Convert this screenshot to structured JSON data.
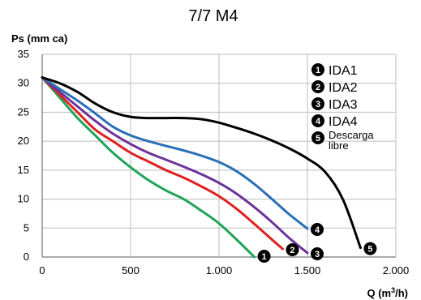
{
  "chart_data": {
    "type": "line",
    "title": "7/7 M4",
    "ylabel": "Ps (mm ca)",
    "xlabel_main": "Q (m",
    "xlabel_sup": "3",
    "xlabel_end": "/h)",
    "xlim": [
      0,
      2000
    ],
    "ylim": [
      0,
      35
    ],
    "xticks": [
      {
        "value": 0,
        "label": "0"
      },
      {
        "value": 500,
        "label": "500"
      },
      {
        "value": 1000,
        "label": "1.000"
      },
      {
        "value": 1500,
        "label": "1.500"
      },
      {
        "value": 2000,
        "label": "2.000"
      }
    ],
    "yticks": [
      {
        "value": 0,
        "label": "0"
      },
      {
        "value": 5,
        "label": "5"
      },
      {
        "value": 10,
        "label": "10"
      },
      {
        "value": 15,
        "label": "15"
      },
      {
        "value": 20,
        "label": "20"
      },
      {
        "value": 25,
        "label": "25"
      },
      {
        "value": 30,
        "label": "30"
      },
      {
        "value": 35,
        "label": "35"
      }
    ],
    "grid": true,
    "legend_position": "top-right",
    "series": [
      {
        "name": "IDA1",
        "marker": "1",
        "color": "#21a35a",
        "x": [
          0,
          100,
          200,
          300,
          400,
          500,
          600,
          700,
          800,
          900,
          1000,
          1100,
          1200
        ],
        "y": [
          31,
          27.5,
          24,
          21,
          18,
          15.5,
          13.3,
          11.5,
          10,
          8,
          5.8,
          3,
          0
        ]
      },
      {
        "name": "IDA2",
        "marker": "2",
        "color": "#e02020",
        "x": [
          0,
          100,
          200,
          300,
          400,
          500,
          600,
          700,
          800,
          900,
          1000,
          1100,
          1200,
          1300,
          1360
        ],
        "y": [
          31,
          28,
          25,
          22,
          20,
          18,
          16.5,
          15,
          13.7,
          12.2,
          10.5,
          8.3,
          5.7,
          3,
          1.4
        ]
      },
      {
        "name": "IDA3",
        "marker": "3",
        "color": "#6c349a",
        "x": [
          0,
          100,
          200,
          300,
          400,
          500,
          600,
          700,
          800,
          900,
          1000,
          1100,
          1200,
          1300,
          1400,
          1500
        ],
        "y": [
          31,
          28.5,
          26,
          23.5,
          21.3,
          19.5,
          18,
          16.8,
          15.6,
          14.3,
          12.8,
          10.9,
          8.6,
          6,
          3.2,
          0.7
        ]
      },
      {
        "name": "IDA4",
        "marker": "4",
        "color": "#2a6fb5",
        "x": [
          0,
          100,
          200,
          300,
          400,
          500,
          600,
          700,
          800,
          900,
          1000,
          1100,
          1200,
          1300,
          1400,
          1500
        ],
        "y": [
          31,
          29,
          27,
          24.8,
          22.5,
          21,
          20,
          19.2,
          18.4,
          17.5,
          16.4,
          14.8,
          12.6,
          10,
          7.3,
          4.9
        ]
      },
      {
        "name": "Descarga libre",
        "marker": "5",
        "color": "#000000",
        "x": [
          0,
          100,
          200,
          300,
          400,
          500,
          600,
          700,
          800,
          900,
          1000,
          1100,
          1200,
          1300,
          1400,
          1500,
          1600,
          1700,
          1800
        ],
        "y": [
          31,
          30,
          28.5,
          26.5,
          25,
          24.2,
          24,
          24,
          24,
          23.8,
          23.2,
          22.3,
          21.3,
          20.1,
          18.7,
          17,
          14.7,
          10,
          1.6
        ]
      }
    ],
    "legend": [
      {
        "marker": "1",
        "label": "IDA1"
      },
      {
        "marker": "2",
        "label": "IDA2"
      },
      {
        "marker": "3",
        "label": "IDA3"
      },
      {
        "marker": "4",
        "label": "IDA4"
      },
      {
        "marker": "5",
        "label_line1": "Descarga",
        "label_line2": "libre"
      }
    ]
  }
}
